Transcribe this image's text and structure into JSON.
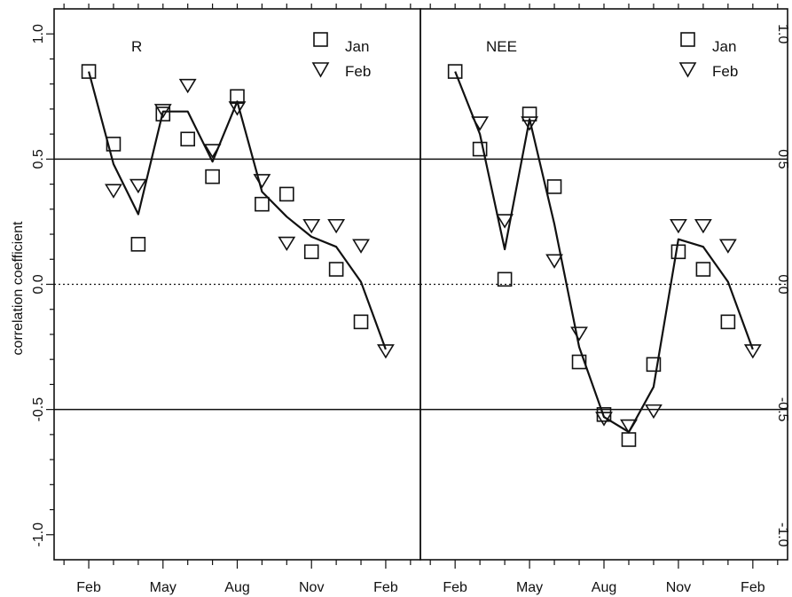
{
  "chart_data": {
    "type": "scatter",
    "ylabel": "correlation coefficient",
    "ylim": [
      -1.1,
      1.1
    ],
    "yticks": [
      "1.0",
      "0.5",
      "0.0",
      "-0.5",
      "-1.0"
    ],
    "ytick_values": [
      1.0,
      0.5,
      0.0,
      -0.5,
      -1.0
    ],
    "xticks": [
      "Feb",
      "May",
      "Aug",
      "Nov",
      "Feb"
    ],
    "xtick_months": [
      0,
      3,
      6,
      9,
      12
    ],
    "xlim_months": [
      -1.4,
      13.4
    ],
    "reference_lines": [
      0.5,
      -0.5
    ],
    "zero_line": "dotted",
    "legend_placement": "top-right",
    "panels": [
      {
        "label": "R",
        "series": [
          {
            "name": "Jan",
            "marker": "square",
            "x": [
              0,
              1,
              2,
              3,
              4,
              5,
              6,
              7,
              8,
              9,
              10,
              11
            ],
            "y": [
              0.85,
              0.56,
              0.16,
              0.68,
              0.58,
              0.43,
              0.75,
              0.32,
              0.36,
              0.13,
              0.06,
              -0.15
            ]
          },
          {
            "name": "Feb",
            "marker": "triangle-down",
            "x": [
              1,
              2,
              3,
              4,
              5,
              6,
              7,
              8,
              9,
              10,
              11,
              12
            ],
            "y": [
              0.38,
              0.4,
              0.7,
              0.8,
              0.54,
              0.71,
              0.42,
              0.17,
              0.24,
              0.24,
              0.16,
              -0.26
            ]
          },
          {
            "name": "",
            "marker": "line",
            "x": [
              0,
              1,
              2,
              3,
              4,
              5,
              6,
              7,
              8,
              9,
              10,
              11,
              12
            ],
            "y": [
              0.85,
              0.48,
              0.28,
              0.69,
              0.69,
              0.49,
              0.73,
              0.37,
              0.27,
              0.19,
              0.15,
              0.01,
              -0.26
            ]
          }
        ]
      },
      {
        "label": "NEE",
        "series": [
          {
            "name": "Jan",
            "marker": "square",
            "x": [
              0,
              1,
              2,
              3,
              4,
              5,
              6,
              7,
              8,
              9,
              10,
              11
            ],
            "y": [
              0.85,
              0.54,
              0.02,
              0.68,
              0.39,
              -0.31,
              -0.52,
              -0.62,
              -0.32,
              0.13,
              0.06,
              -0.15
            ]
          },
          {
            "name": "Feb",
            "marker": "triangle-down",
            "x": [
              1,
              2,
              3,
              4,
              5,
              6,
              7,
              8,
              9,
              10,
              11,
              12
            ],
            "y": [
              0.65,
              0.26,
              0.65,
              0.1,
              -0.19,
              -0.53,
              -0.56,
              -0.5,
              0.24,
              0.24,
              0.16,
              -0.26
            ]
          },
          {
            "name": "",
            "marker": "line",
            "x": [
              0,
              1,
              2,
              3,
              4,
              5,
              6,
              7,
              8,
              9,
              10,
              11,
              12
            ],
            "y": [
              0.85,
              0.6,
              0.14,
              0.66,
              0.24,
              -0.25,
              -0.53,
              -0.59,
              -0.41,
              0.18,
              0.15,
              0.01,
              -0.26
            ]
          }
        ]
      }
    ]
  }
}
